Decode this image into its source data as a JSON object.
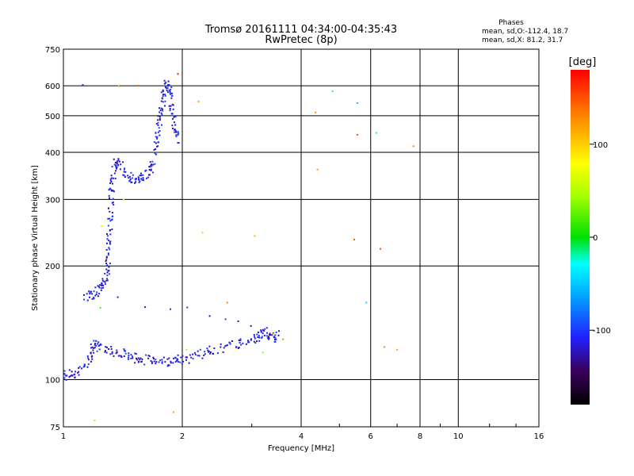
{
  "chart_data": {
    "type": "scatter",
    "title": "Tromsø 20161111 04:34:00-04:35:43",
    "subtitle": "RwPretec (8p)",
    "xlabel": "Frequency [MHz]",
    "ylabel": "Stationary phase Virtual Height [km]",
    "xscale": "log",
    "yscale": "log",
    "xlim": [
      1,
      16
    ],
    "ylim": [
      75,
      750
    ],
    "x_ticks": [
      1,
      2,
      4,
      6,
      8,
      10,
      16
    ],
    "y_ticks": [
      75,
      100,
      200,
      300,
      400,
      500,
      600,
      750
    ],
    "grid": true,
    "phase_stats": {
      "heading": "Phases",
      "o_line": "mean, sd,O:-112.4, 18.7",
      "x_line": "mean, sd,X:  81.2, 31.7"
    },
    "colorbar": {
      "label": "[deg]",
      "range": [
        -180,
        180
      ],
      "ticks": [
        -100,
        0,
        100
      ]
    },
    "series": [
      {
        "mode": "O",
        "trace": [
          [
            1.0,
            102
          ],
          [
            1.03,
            103
          ],
          [
            1.08,
            104
          ],
          [
            1.15,
            110
          ],
          [
            1.18,
            118
          ],
          [
            1.2,
            125
          ],
          [
            1.22,
            122
          ],
          [
            1.3,
            120
          ],
          [
            1.38,
            118
          ],
          [
            1.45,
            116
          ],
          [
            1.52,
            114
          ],
          [
            1.6,
            113
          ],
          [
            1.7,
            113
          ],
          [
            1.8,
            112
          ],
          [
            1.9,
            112
          ],
          [
            2.0,
            113
          ],
          [
            2.1,
            115
          ],
          [
            2.25,
            118
          ],
          [
            2.4,
            120
          ],
          [
            2.6,
            122
          ],
          [
            2.8,
            125
          ],
          [
            3.0,
            128
          ],
          [
            3.1,
            130
          ],
          [
            3.2,
            133
          ],
          [
            3.3,
            132
          ],
          [
            3.4,
            129
          ],
          [
            3.5,
            131
          ],
          [
            1.14,
            165
          ],
          [
            1.18,
            168
          ],
          [
            1.22,
            172
          ],
          [
            1.26,
            178
          ],
          [
            1.28,
            185
          ],
          [
            1.3,
            200
          ],
          [
            1.3,
            220
          ],
          [
            1.31,
            245
          ],
          [
            1.32,
            270
          ],
          [
            1.32,
            300
          ],
          [
            1.33,
            330
          ],
          [
            1.34,
            360
          ],
          [
            1.36,
            380
          ],
          [
            1.4,
            370
          ],
          [
            1.45,
            345
          ],
          [
            1.5,
            340
          ],
          [
            1.55,
            338
          ],
          [
            1.6,
            345
          ],
          [
            1.65,
            360
          ],
          [
            1.7,
            380
          ],
          [
            1.72,
            420
          ],
          [
            1.74,
            460
          ],
          [
            1.76,
            500
          ],
          [
            1.78,
            540
          ],
          [
            1.8,
            580
          ],
          [
            1.83,
            610
          ],
          [
            1.86,
            590
          ],
          [
            1.88,
            540
          ],
          [
            1.9,
            500
          ],
          [
            1.92,
            460
          ],
          [
            1.95,
            430
          ]
        ],
        "phase_deg": -112.4
      },
      {
        "mode": "X",
        "scattered_points": [
          [
            1.05,
            105,
            -150
          ],
          [
            1.12,
            603,
            -110
          ],
          [
            1.2,
            78,
            100
          ],
          [
            1.24,
            155,
            20
          ],
          [
            1.25,
            255,
            60
          ],
          [
            1.38,
            598,
            110
          ],
          [
            1.42,
            300,
            60
          ],
          [
            1.55,
            600,
            150
          ],
          [
            1.9,
            82,
            120
          ],
          [
            1.95,
            645,
            170
          ],
          [
            2.05,
            120,
            50
          ],
          [
            2.2,
            545,
            120
          ],
          [
            2.25,
            245,
            100
          ],
          [
            2.6,
            160,
            130
          ],
          [
            3.05,
            240,
            110
          ],
          [
            3.2,
            118,
            40
          ],
          [
            3.4,
            132,
            100
          ],
          [
            3.6,
            128,
            130
          ],
          [
            4.35,
            510,
            130
          ],
          [
            4.4,
            360,
            120
          ],
          [
            4.8,
            580,
            -20
          ],
          [
            5.45,
            235,
            150
          ],
          [
            5.55,
            445,
            150
          ],
          [
            5.55,
            540,
            -50
          ],
          [
            5.85,
            160,
            -40
          ],
          [
            6.2,
            450,
            -20
          ],
          [
            6.35,
            222,
            150
          ],
          [
            6.5,
            122,
            130
          ],
          [
            7.0,
            120,
            120
          ],
          [
            7.7,
            415,
            130
          ]
        ]
      }
    ]
  }
}
